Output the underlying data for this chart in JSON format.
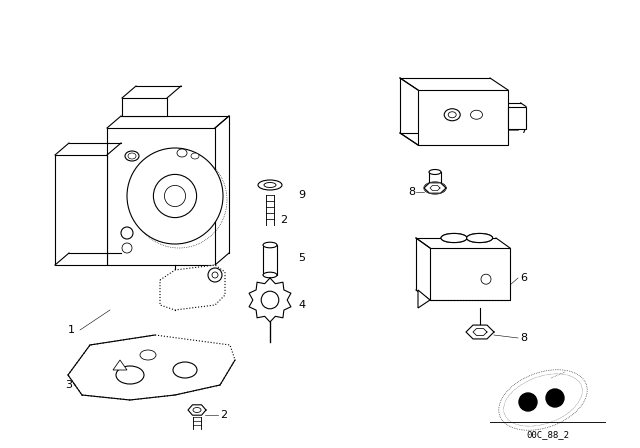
{
  "bg_color": "#ffffff",
  "line_color": "#000000",
  "fig_width": 6.4,
  "fig_height": 4.48,
  "dpi": 100,
  "footer_text": "00C_88_2",
  "label_fontsize": 8,
  "small_fontsize": 6.5,
  "lw": 0.8
}
